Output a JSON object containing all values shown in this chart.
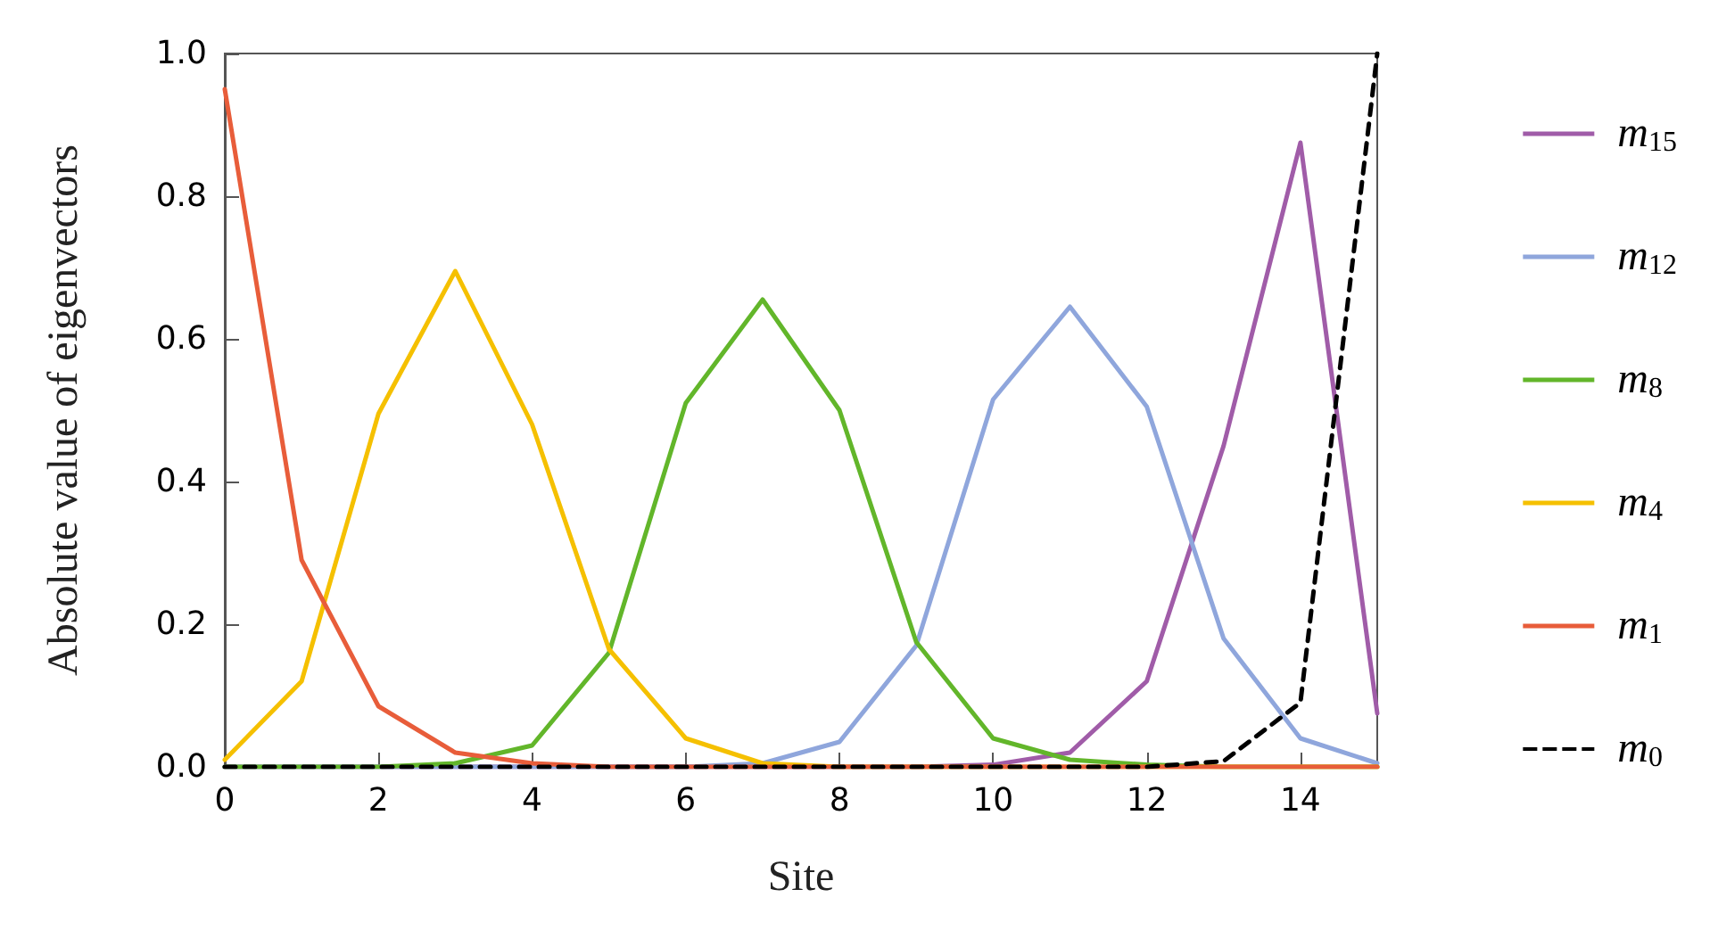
{
  "chart_data": {
    "type": "line",
    "xlabel": "Site",
    "ylabel": "Absolute value of eigenvectors",
    "x": [
      0,
      1,
      2,
      3,
      4,
      5,
      6,
      7,
      8,
      9,
      10,
      11,
      12,
      13,
      14,
      15
    ],
    "series": [
      {
        "name": "m$_{15}$",
        "color": "#a05ca8",
        "values": [
          0,
          0,
          0,
          0,
          0,
          0,
          0,
          0,
          0,
          0,
          0.003,
          0.02,
          0.12,
          0.45,
          0.875,
          0.075
        ]
      },
      {
        "name": "m$_{12}$",
        "color": "#8fa6dc",
        "values": [
          0,
          0,
          0,
          0,
          0,
          0,
          0,
          0.005,
          0.035,
          0.17,
          0.515,
          0.645,
          0.505,
          0.18,
          0.04,
          0.005
        ]
      },
      {
        "name": "m$_{8}$",
        "color": "#62b62a",
        "values": [
          0,
          0,
          0,
          0.005,
          0.03,
          0.16,
          0.51,
          0.655,
          0.5,
          0.175,
          0.04,
          0.01,
          0.003,
          0,
          0,
          0
        ]
      },
      {
        "name": "m$_{4}$",
        "color": "#f5c000",
        "values": [
          0.01,
          0.12,
          0.495,
          0.695,
          0.48,
          0.165,
          0.04,
          0.005,
          0,
          0,
          0,
          0,
          0,
          0,
          0,
          0
        ]
      },
      {
        "name": "m$_{1}$",
        "color": "#e85d3a",
        "values": [
          0.95,
          0.29,
          0.085,
          0.02,
          0.005,
          0,
          0,
          0,
          0,
          0,
          0,
          0,
          0,
          0,
          0,
          0
        ]
      },
      {
        "name": "m$_{0}$",
        "color": "#000000",
        "line_style": "dashed",
        "values": [
          0,
          0,
          0,
          0,
          0,
          0,
          0,
          0,
          0,
          0,
          0,
          0,
          0,
          0.008,
          0.09,
          1.0
        ]
      }
    ],
    "xlim": [
      0,
      15
    ],
    "xticks": [
      0,
      2,
      4,
      6,
      8,
      10,
      12,
      14
    ],
    "ylim": [
      0,
      1
    ],
    "yticks": [
      {
        "value": 0,
        "label": "0.0"
      },
      {
        "value": 0.2,
        "label": "0.2"
      },
      {
        "value": 0.4,
        "label": "0.4"
      },
      {
        "value": 0.6,
        "label": "0.6"
      },
      {
        "value": 0.8,
        "label": "0.8"
      },
      {
        "value": 1,
        "label": "1.0"
      }
    ],
    "grid": false,
    "legend": "right",
    "marker": "none",
    "line_style": "solid"
  }
}
